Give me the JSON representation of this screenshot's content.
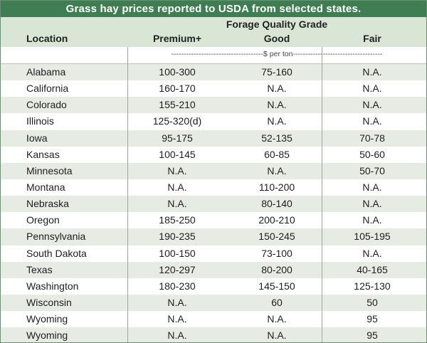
{
  "title": "Grass hay prices reported to USDA from selected states.",
  "header": {
    "location_label": "Location",
    "group_label": "Forage Quality Grade",
    "columns": [
      "Premium+",
      "Good",
      "Fair"
    ],
    "units": "-------------------------------------$ per ton------------------------------------"
  },
  "rows": [
    {
      "location": "Alabama",
      "premium": "100-300",
      "good": "75-160",
      "fair": "N.A."
    },
    {
      "location": "California",
      "premium": "160-170",
      "good": "N.A.",
      "fair": "N.A."
    },
    {
      "location": "Colorado",
      "premium": "155-210",
      "good": "N.A.",
      "fair": "N.A."
    },
    {
      "location": "Illinois",
      "premium": "125-320(d)",
      "good": "N.A.",
      "fair": "N.A."
    },
    {
      "location": "Iowa",
      "premium": "95-175",
      "good": "52-135",
      "fair": "70-78"
    },
    {
      "location": "Kansas",
      "premium": "100-145",
      "good": "60-85",
      "fair": "50-60"
    },
    {
      "location": "Minnesota",
      "premium": "N.A.",
      "good": "N.A.",
      "fair": "50-70"
    },
    {
      "location": "Montana",
      "premium": "N.A.",
      "good": "110-200",
      "fair": "N.A."
    },
    {
      "location": "Nebraska",
      "premium": "N.A.",
      "good": "80-140",
      "fair": "N.A."
    },
    {
      "location": "Oregon",
      "premium": "185-250",
      "good": "200-210",
      "fair": "N.A."
    },
    {
      "location": "Pennsylvania",
      "premium": "190-235",
      "good": "150-245",
      "fair": "105-195"
    },
    {
      "location": "South Dakota",
      "premium": "100-150",
      "good": "73-100",
      "fair": "N.A."
    },
    {
      "location": "Texas",
      "premium": "120-297",
      "good": "80-200",
      "fair": "40-165"
    },
    {
      "location": "Washington",
      "premium": "180-230",
      "good": "145-150",
      "fair": "125-130"
    },
    {
      "location": "Wisconsin",
      "premium": "N.A.",
      "good": "60",
      "fair": "50"
    },
    {
      "location": "Wyoming",
      "premium": "N.A.",
      "good": "N.A.",
      "fair": "95"
    },
    {
      "location": "Wyoming",
      "premium": "N.A.",
      "good": "N.A.",
      "fair": "95"
    }
  ],
  "colors": {
    "title_bg": "#3f7d52",
    "header_bg": "#d9e6d6",
    "alt_row_bg": "#e6ebe4"
  }
}
